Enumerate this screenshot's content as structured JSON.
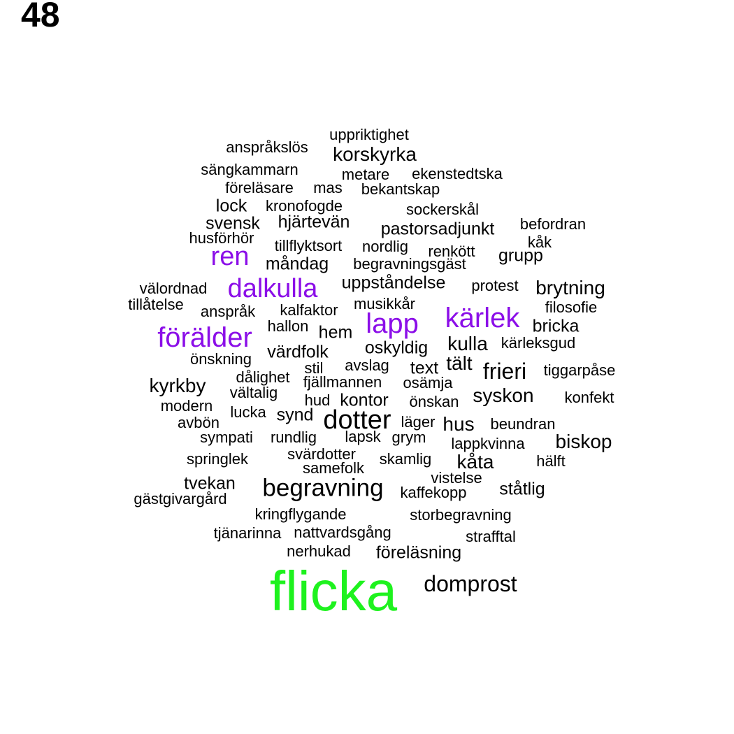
{
  "page_number": "48",
  "colors": {
    "primary": "#000000",
    "accent": "#8b0ee8",
    "highlight": "#1ef21e"
  },
  "words": [
    {
      "text": "uppriktighet",
      "color": "primary"
    },
    {
      "text": "anspråkslös",
      "color": "primary"
    },
    {
      "text": "korskyrka",
      "color": "primary"
    },
    {
      "text": "sängkammarn",
      "color": "primary"
    },
    {
      "text": "metare",
      "color": "primary"
    },
    {
      "text": "ekenstedtska",
      "color": "primary"
    },
    {
      "text": "föreläsare",
      "color": "primary"
    },
    {
      "text": "mas",
      "color": "primary"
    },
    {
      "text": "bekantskap",
      "color": "primary"
    },
    {
      "text": "lock",
      "color": "primary"
    },
    {
      "text": "kronofogde",
      "color": "primary"
    },
    {
      "text": "sockerskål",
      "color": "primary"
    },
    {
      "text": "svensk",
      "color": "primary"
    },
    {
      "text": "hjärtevän",
      "color": "primary"
    },
    {
      "text": "pastorsadjunkt",
      "color": "primary"
    },
    {
      "text": "befordran",
      "color": "primary"
    },
    {
      "text": "husförhör",
      "color": "primary"
    },
    {
      "text": "tillflyktsort",
      "color": "primary"
    },
    {
      "text": "nordlig",
      "color": "primary"
    },
    {
      "text": "kåk",
      "color": "primary"
    },
    {
      "text": "renkött",
      "color": "primary"
    },
    {
      "text": "ren",
      "color": "accent"
    },
    {
      "text": "grupp",
      "color": "primary"
    },
    {
      "text": "måndag",
      "color": "primary"
    },
    {
      "text": "begravningsgäst",
      "color": "primary"
    },
    {
      "text": "dalkulla",
      "color": "accent"
    },
    {
      "text": "uppståndelse",
      "color": "primary"
    },
    {
      "text": "protest",
      "color": "primary"
    },
    {
      "text": "brytning",
      "color": "primary"
    },
    {
      "text": "välordnad",
      "color": "primary"
    },
    {
      "text": "tillåtelse",
      "color": "primary"
    },
    {
      "text": "musikkår",
      "color": "primary"
    },
    {
      "text": "filosofie",
      "color": "primary"
    },
    {
      "text": "anspråk",
      "color": "primary"
    },
    {
      "text": "kalfaktor",
      "color": "primary"
    },
    {
      "text": "kärlek",
      "color": "accent"
    },
    {
      "text": "lapp",
      "color": "accent"
    },
    {
      "text": "hallon",
      "color": "primary"
    },
    {
      "text": "bricka",
      "color": "primary"
    },
    {
      "text": "förälder",
      "color": "accent"
    },
    {
      "text": "hem",
      "color": "primary"
    },
    {
      "text": "kulla",
      "color": "primary"
    },
    {
      "text": "kärleksgud",
      "color": "primary"
    },
    {
      "text": "värdfolk",
      "color": "primary"
    },
    {
      "text": "oskyldig",
      "color": "primary"
    },
    {
      "text": "önskning",
      "color": "primary"
    },
    {
      "text": "tält",
      "color": "primary"
    },
    {
      "text": "frieri",
      "color": "primary"
    },
    {
      "text": "tiggarpåse",
      "color": "primary"
    },
    {
      "text": "stil",
      "color": "primary"
    },
    {
      "text": "avslag",
      "color": "primary"
    },
    {
      "text": "text",
      "color": "primary"
    },
    {
      "text": "dålighet",
      "color": "primary"
    },
    {
      "text": "kyrkby",
      "color": "primary"
    },
    {
      "text": "fjällmannen",
      "color": "primary"
    },
    {
      "text": "osämja",
      "color": "primary"
    },
    {
      "text": "vältalig",
      "color": "primary"
    },
    {
      "text": "syskon",
      "color": "primary"
    },
    {
      "text": "hud",
      "color": "primary"
    },
    {
      "text": "kontor",
      "color": "primary"
    },
    {
      "text": "önskan",
      "color": "primary"
    },
    {
      "text": "konfekt",
      "color": "primary"
    },
    {
      "text": "modern",
      "color": "primary"
    },
    {
      "text": "lucka",
      "color": "primary"
    },
    {
      "text": "synd",
      "color": "primary"
    },
    {
      "text": "dotter",
      "color": "primary"
    },
    {
      "text": "läger",
      "color": "primary"
    },
    {
      "text": "hus",
      "color": "primary"
    },
    {
      "text": "beundran",
      "color": "primary"
    },
    {
      "text": "avbön",
      "color": "primary"
    },
    {
      "text": "sympati",
      "color": "primary"
    },
    {
      "text": "rundlig",
      "color": "primary"
    },
    {
      "text": "lapsk",
      "color": "primary"
    },
    {
      "text": "grym",
      "color": "primary"
    },
    {
      "text": "lappkvinna",
      "color": "primary"
    },
    {
      "text": "biskop",
      "color": "primary"
    },
    {
      "text": "svärdotter",
      "color": "primary"
    },
    {
      "text": "springlek",
      "color": "primary"
    },
    {
      "text": "samefolk",
      "color": "primary"
    },
    {
      "text": "skamlig",
      "color": "primary"
    },
    {
      "text": "kåta",
      "color": "primary"
    },
    {
      "text": "hälft",
      "color": "primary"
    },
    {
      "text": "vistelse",
      "color": "primary"
    },
    {
      "text": "tvekan",
      "color": "primary"
    },
    {
      "text": "begravning",
      "color": "primary"
    },
    {
      "text": "ståtlig",
      "color": "primary"
    },
    {
      "text": "kaffekopp",
      "color": "primary"
    },
    {
      "text": "gästgivargård",
      "color": "primary"
    },
    {
      "text": "kringflygande",
      "color": "primary"
    },
    {
      "text": "storbegravning",
      "color": "primary"
    },
    {
      "text": "tjänarinna",
      "color": "primary"
    },
    {
      "text": "nattvardsgång",
      "color": "primary"
    },
    {
      "text": "strafftal",
      "color": "primary"
    },
    {
      "text": "nerhukad",
      "color": "primary"
    },
    {
      "text": "föreläsning",
      "color": "primary"
    },
    {
      "text": "domprost",
      "color": "primary"
    },
    {
      "text": "flicka",
      "color": "highlight"
    }
  ]
}
